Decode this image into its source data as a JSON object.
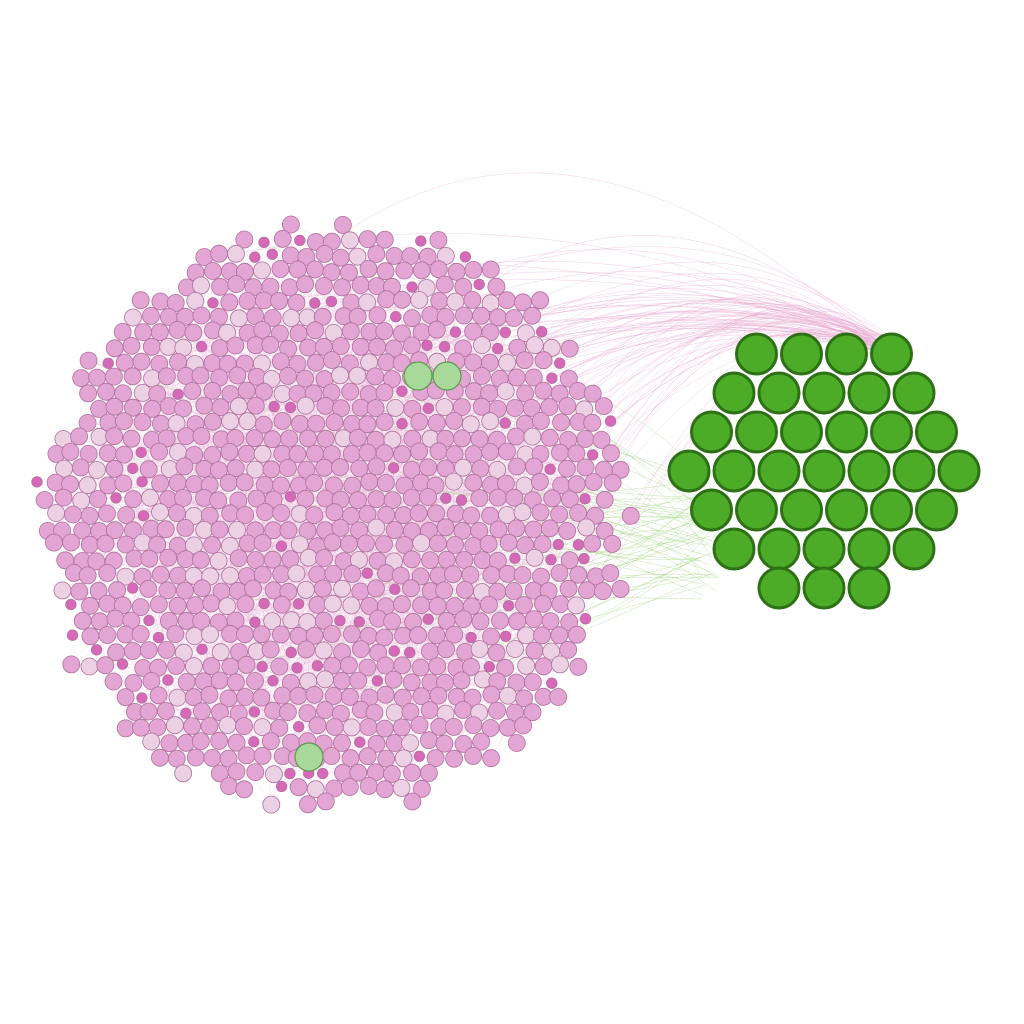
{
  "network": {
    "clusters": [
      {
        "name": "pink-cluster",
        "node_color": "#e3a5d3",
        "node_color_light": "#ecd0e4",
        "node_color_dark": "#d66ab8",
        "node_stroke": "#b0719e",
        "edge_color": "#e7a3cf",
        "approx_node_count": 1150
      },
      {
        "name": "green-cluster",
        "node_color": "#4cab27",
        "node_stroke": "#2d7015",
        "edge_color": "#8fcf6a",
        "rows": [
          4,
          5,
          6,
          7,
          6,
          5,
          3
        ],
        "node_count": 36
      }
    ],
    "embedded_green_nodes": {
      "count": 3,
      "node_color": "#a8d89a",
      "node_stroke": "#5c9a4e"
    }
  }
}
